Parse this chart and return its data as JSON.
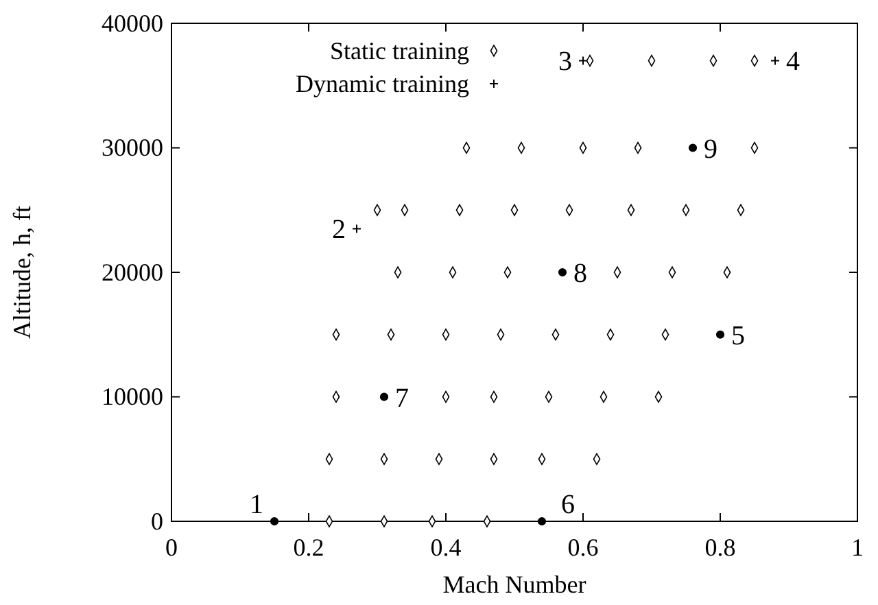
{
  "chart_data": {
    "type": "scatter",
    "xlabel": "Mach Number",
    "ylabel": "Altitude, h, ft",
    "xlim": [
      0,
      1
    ],
    "ylim": [
      0,
      40000
    ],
    "xticks": [
      0,
      0.2,
      0.4,
      0.6,
      0.8,
      1
    ],
    "yticks": [
      0,
      10000,
      20000,
      30000,
      40000
    ],
    "legend": "top left",
    "grid": false,
    "series": [
      {
        "name": "Static training",
        "color": "#000000",
        "marker": "diamond",
        "x": [
          0.23,
          0.31,
          0.38,
          0.46,
          0.23,
          0.31,
          0.39,
          0.47,
          0.54,
          0.62,
          0.24,
          0.4,
          0.47,
          0.55,
          0.63,
          0.71,
          0.24,
          0.32,
          0.4,
          0.48,
          0.56,
          0.64,
          0.72,
          0.33,
          0.41,
          0.49,
          0.65,
          0.73,
          0.81,
          0.3,
          0.34,
          0.42,
          0.5,
          0.58,
          0.67,
          0.75,
          0.83,
          0.43,
          0.51,
          0.6,
          0.68,
          0.85,
          0.61,
          0.7,
          0.79,
          0.85
        ],
        "values": [
          0,
          0,
          0,
          0,
          5000,
          5000,
          5000,
          5000,
          5000,
          5000,
          10000,
          10000,
          10000,
          10000,
          10000,
          10000,
          15000,
          15000,
          15000,
          15000,
          15000,
          15000,
          15000,
          20000,
          20000,
          20000,
          20000,
          20000,
          20000,
          25000,
          25000,
          25000,
          25000,
          25000,
          25000,
          25000,
          25000,
          30000,
          30000,
          30000,
          30000,
          30000,
          37000,
          37000,
          37000,
          37000
        ]
      },
      {
        "name": "Dynamic training",
        "color": "#000000",
        "marker": "cross",
        "x": [
          0.27,
          0.6,
          0.88
        ],
        "values": [
          23500,
          37000,
          37000
        ]
      },
      {
        "color": "#000000",
        "marker": "circle",
        "x": [
          0.15,
          0.54,
          0.31,
          0.8,
          0.57,
          0.76
        ],
        "values": [
          0,
          0,
          10000,
          15000,
          20000,
          30000
        ]
      }
    ],
    "annotations": [
      {
        "text": "1",
        "x": 0.15,
        "y": 0
      },
      {
        "text": "2",
        "x": 0.27,
        "y": 23500
      },
      {
        "text": "3",
        "x": 0.6,
        "y": 37000
      },
      {
        "text": "4",
        "x": 0.88,
        "y": 37000
      },
      {
        "text": "5",
        "x": 0.8,
        "y": 15000
      },
      {
        "text": "6",
        "x": 0.54,
        "y": 0
      },
      {
        "text": "7",
        "x": 0.31,
        "y": 10000
      },
      {
        "text": "8",
        "x": 0.57,
        "y": 20000
      },
      {
        "text": "9",
        "x": 0.76,
        "y": 30000
      }
    ]
  }
}
